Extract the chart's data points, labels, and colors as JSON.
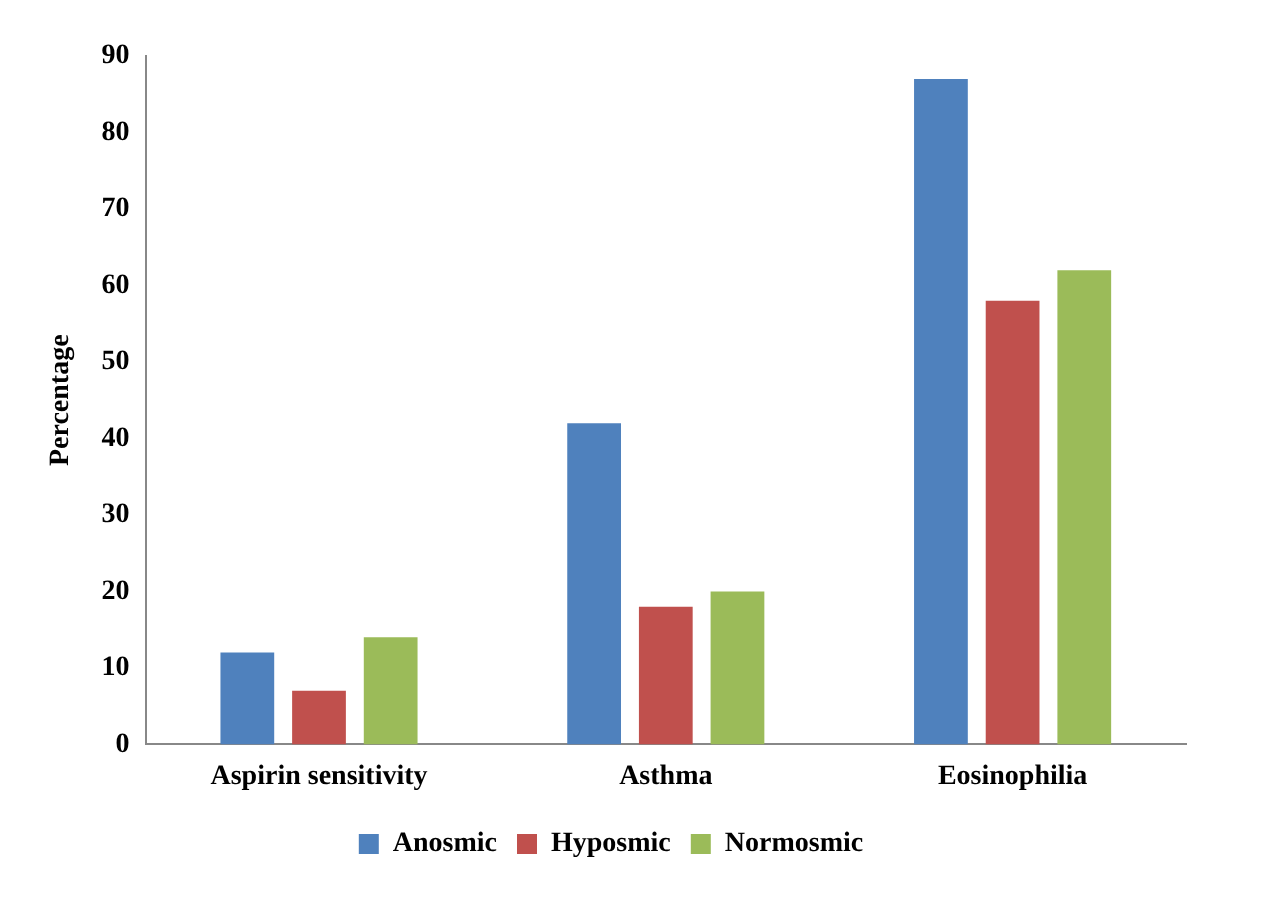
{
  "chart_data": {
    "type": "bar",
    "ylabel": "Percentage",
    "categories": [
      "Aspirin sensitivity",
      "Asthma",
      "Eosinophilia"
    ],
    "series": [
      {
        "name": "Anosmic",
        "color": "#4f81bd",
        "values": [
          12,
          42,
          87
        ]
      },
      {
        "name": "Hyposmic",
        "color": "#c0504d",
        "values": [
          7,
          18,
          58
        ]
      },
      {
        "name": "Normosmic",
        "color": "#9bbb59",
        "values": [
          14,
          20,
          62
        ]
      }
    ],
    "ylim": [
      0,
      90
    ],
    "yticks": [
      0,
      10,
      20,
      30,
      40,
      50,
      60,
      70,
      80,
      90
    ],
    "grid": false,
    "legend": "bottom"
  }
}
